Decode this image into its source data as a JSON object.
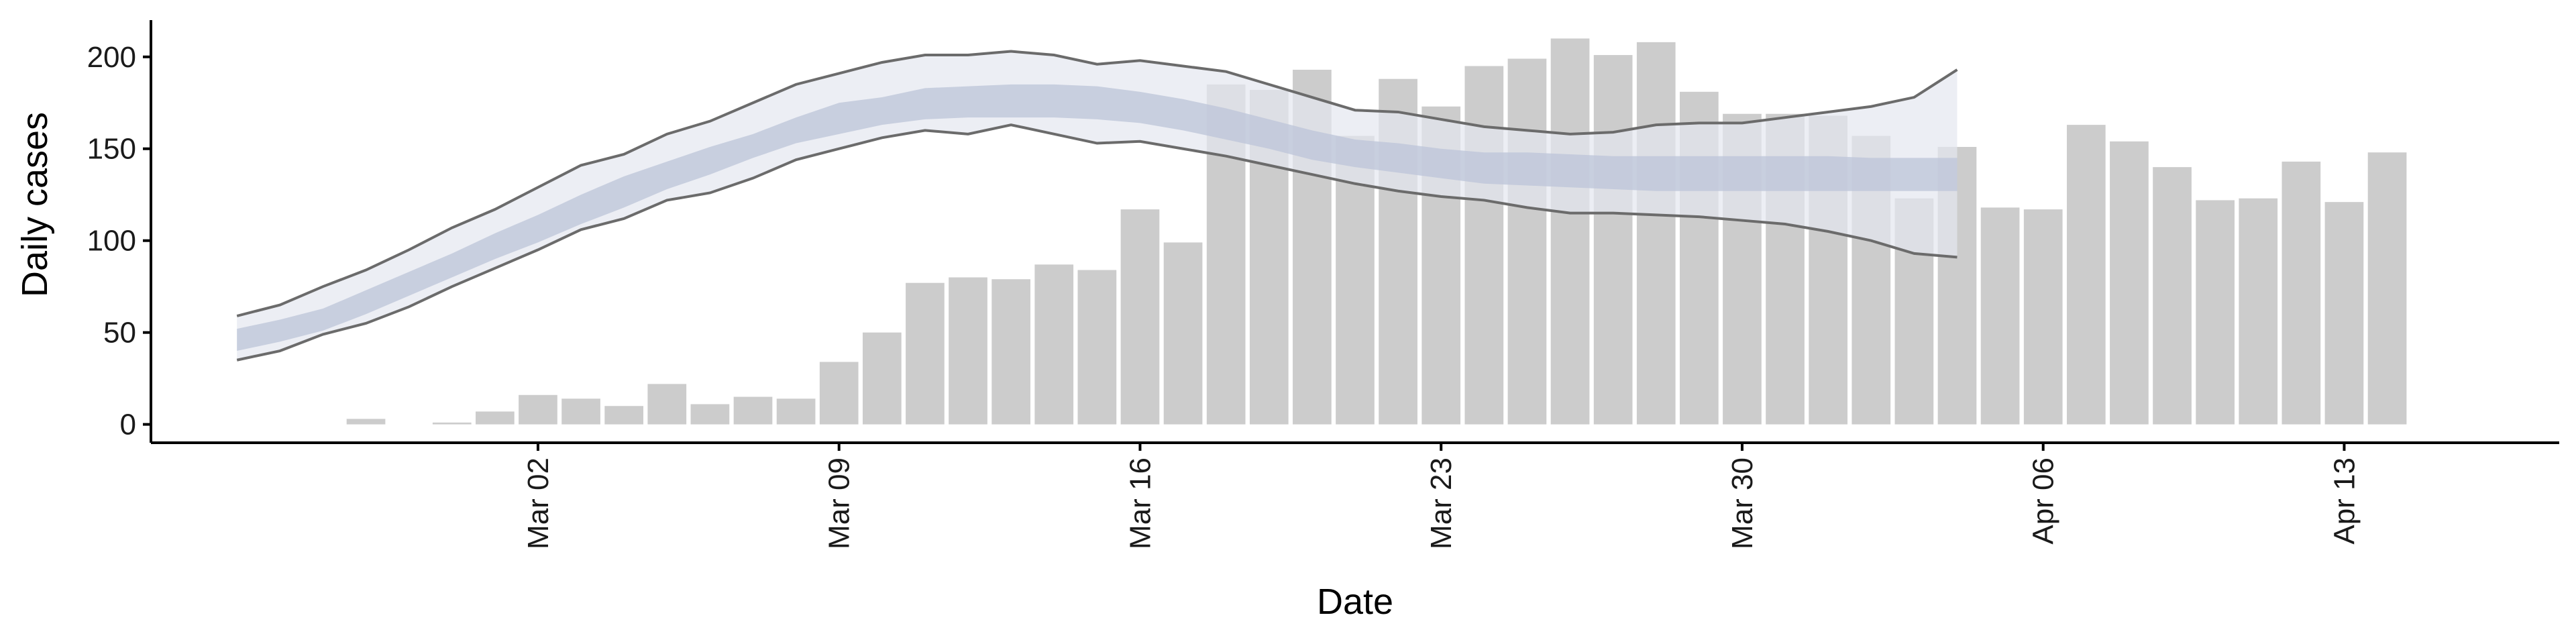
{
  "chart_data": {
    "type": "bar",
    "xlabel": "Date",
    "ylabel": "Daily cases",
    "ylim": [
      -10,
      220
    ],
    "y_ticks": [
      0,
      50,
      100,
      150,
      200
    ],
    "x_ticks": [
      {
        "label": "Mar 02",
        "date": "2020-03-02"
      },
      {
        "label": "Mar 09",
        "date": "2020-03-09"
      },
      {
        "label": "Mar 16",
        "date": "2020-03-16"
      },
      {
        "label": "Mar 23",
        "date": "2020-03-23"
      },
      {
        "label": "Mar 30",
        "date": "2020-03-30"
      },
      {
        "label": "Apr 06",
        "date": "2020-04-06"
      },
      {
        "label": "Apr 13",
        "date": "2020-04-13"
      }
    ],
    "xlim": [
      "2020-02-22",
      "2020-04-18"
    ],
    "grid": false,
    "legend": "none",
    "colors": {
      "bars": "#cccccc",
      "band_outer": "#e4e7f0",
      "band_inner": "#bcc4d8",
      "bound_lines": "#6b6b6b",
      "axis": "#000000"
    },
    "bars": {
      "dates": [
        "2020-02-26",
        "2020-02-27",
        "2020-02-28",
        "2020-02-29",
        "2020-03-01",
        "2020-03-02",
        "2020-03-03",
        "2020-03-04",
        "2020-03-05",
        "2020-03-06",
        "2020-03-07",
        "2020-03-08",
        "2020-03-09",
        "2020-03-10",
        "2020-03-11",
        "2020-03-12",
        "2020-03-13",
        "2020-03-14",
        "2020-03-15",
        "2020-03-16",
        "2020-03-17",
        "2020-03-18",
        "2020-03-19",
        "2020-03-20",
        "2020-03-21",
        "2020-03-22",
        "2020-03-23",
        "2020-03-24",
        "2020-03-25",
        "2020-03-26",
        "2020-03-27",
        "2020-03-28",
        "2020-03-29",
        "2020-03-30",
        "2020-03-31",
        "2020-04-01",
        "2020-04-02",
        "2020-04-03",
        "2020-04-04",
        "2020-04-05",
        "2020-04-06",
        "2020-04-07",
        "2020-04-08",
        "2020-04-09",
        "2020-04-10",
        "2020-04-11",
        "2020-04-12",
        "2020-04-13",
        "2020-04-14",
        "2020-04-15",
        "2020-04-16",
        "2020-04-17"
      ],
      "values": [
        0,
        3,
        0,
        1,
        7,
        16,
        14,
        10,
        22,
        11,
        15,
        14,
        34,
        50,
        77,
        80,
        79,
        87,
        84,
        117,
        99,
        185,
        182,
        193,
        157,
        188,
        173,
        195,
        199,
        210,
        201,
        208,
        181,
        169,
        169,
        168,
        157,
        123,
        151,
        118,
        117,
        163,
        154,
        140,
        122,
        123,
        143,
        121,
        148,
        0,
        0,
        0
      ]
    },
    "model": {
      "start_date": "2020-02-24",
      "upper": [
        59,
        65,
        75,
        84,
        95,
        107,
        117,
        129,
        141,
        147,
        158,
        165,
        175,
        185,
        191,
        197,
        201,
        201,
        203,
        201,
        196,
        198,
        195,
        192,
        185,
        178,
        171,
        170,
        166,
        162,
        160,
        158,
        159,
        163,
        164,
        164,
        167,
        170,
        173,
        178,
        193
      ],
      "inner_upper": [
        52,
        57,
        63,
        73,
        83,
        93,
        104,
        114,
        125,
        135,
        143,
        151,
        158,
        167,
        175,
        178,
        183,
        184,
        185,
        185,
        184,
        181,
        177,
        172,
        166,
        160,
        155,
        153,
        150,
        148,
        148,
        147,
        146,
        146,
        146,
        146,
        146,
        146,
        145,
        145,
        145
      ],
      "inner_lower": [
        40,
        45,
        51,
        60,
        70,
        80,
        90,
        99,
        109,
        118,
        128,
        136,
        145,
        153,
        158,
        163,
        166,
        167,
        167,
        167,
        166,
        164,
        160,
        155,
        150,
        144,
        140,
        137,
        134,
        131,
        130,
        129,
        128,
        127,
        127,
        127,
        127,
        127,
        127,
        127,
        127
      ],
      "lower": [
        35,
        40,
        49,
        55,
        64,
        75,
        85,
        95,
        106,
        112,
        122,
        126,
        134,
        144,
        150,
        156,
        160,
        158,
        163,
        158,
        153,
        154,
        150,
        146,
        141,
        136,
        131,
        127,
        124,
        122,
        118,
        115,
        115,
        114,
        113,
        111,
        109,
        105,
        100,
        93,
        91
      ]
    }
  }
}
